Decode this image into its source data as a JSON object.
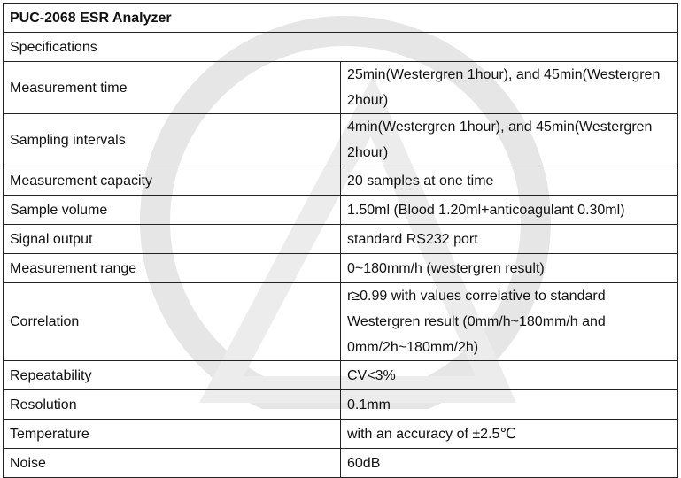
{
  "table": {
    "title": "PUC-2068 ESR Analyzer",
    "section": "Specifications",
    "rows": [
      [
        "Measurement time",
        "25min(Westergren 1hour), and 45min(Westergren 2hour)"
      ],
      [
        "Sampling intervals",
        "4min(Westergren 1hour), and 45min(Westergren 2hour)"
      ],
      [
        "Measurement capacity",
        "20 samples at one time"
      ],
      [
        "Sample volume",
        "1.50ml (Blood 1.20ml+anticoagulant 0.30ml)"
      ],
      [
        "Signal output",
        "standard RS232 port"
      ],
      [
        "Measurement range",
        "0~180mm/h (westergren result)"
      ],
      [
        "Correlation",
        "r≥0.99 with values correlative to standard Westergren result (0mm/h~180mm/h and 0mm/2h~180mm/2h)"
      ],
      [
        "Repeatability",
        "CV<3%"
      ],
      [
        "Resolution",
        "0.1mm"
      ],
      [
        "Temperature",
        "with an accuracy of  ±2.5℃"
      ],
      [
        "Noise",
        "60dB"
      ]
    ]
  }
}
